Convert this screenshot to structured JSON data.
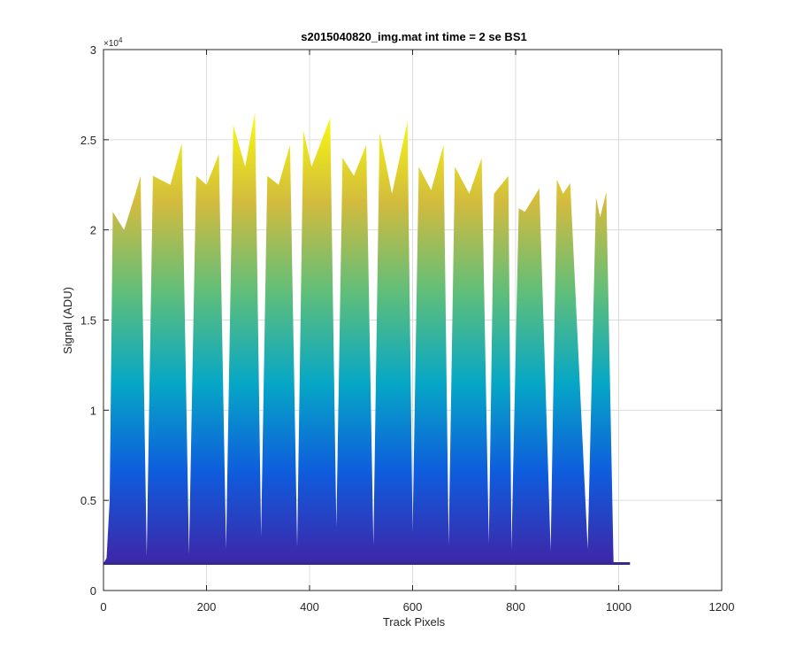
{
  "chart_data": {
    "type": "area",
    "title": "s2015040820_img.mat int time = 2 se   BS1",
    "xlabel": "Track Pixels",
    "ylabel": "Signal (ADU)",
    "xlim": [
      0,
      1200
    ],
    "ylim": [
      0,
      30000
    ],
    "xticks": [
      0,
      200,
      400,
      600,
      800,
      1000,
      1200
    ],
    "xtick_labels": [
      "0",
      "200",
      "400",
      "600",
      "800",
      "1000",
      "1200"
    ],
    "yticks": [
      0,
      5000,
      10000,
      15000,
      20000,
      25000,
      30000
    ],
    "ytick_labels": [
      "0",
      "0.5",
      "1",
      "1.5",
      "2",
      "2.5",
      "3"
    ],
    "y_exponent_base": "×10",
    "y_exponent_power": "4",
    "grid": true,
    "baseline": 1500,
    "colormap": [
      "#3e26a8",
      "#0f5cdd",
      "#06a7c6",
      "#5fbe7a",
      "#d2bb3e",
      "#f9fb0e"
    ],
    "x": [
      0,
      6,
      12,
      18,
      40,
      62,
      72,
      84,
      96,
      130,
      152,
      166,
      180,
      200,
      224,
      238,
      252,
      275,
      294,
      306,
      318,
      340,
      362,
      376,
      388,
      404,
      440,
      452,
      464,
      486,
      510,
      524,
      536,
      560,
      590,
      600,
      612,
      636,
      660,
      670,
      682,
      710,
      734,
      748,
      758,
      786,
      792,
      806,
      818,
      846,
      868,
      880,
      892,
      906,
      940,
      956,
      964,
      976,
      990,
      1010,
      1020,
      1022
    ],
    "y": [
      1500,
      1800,
      5000,
      21000,
      20000,
      22000,
      23000,
      1900,
      23000,
      22500,
      24800,
      2000,
      23000,
      22500,
      24200,
      2300,
      25800,
      23500,
      26500,
      3000,
      23000,
      22500,
      24700,
      2400,
      25500,
      23500,
      26200,
      3500,
      24000,
      23000,
      24700,
      2500,
      25400,
      22000,
      26000,
      3200,
      23500,
      22200,
      24700,
      2500,
      23500,
      22000,
      24000,
      2600,
      22000,
      23000,
      2300,
      21200,
      21000,
      22300,
      2200,
      22800,
      22000,
      22600,
      2300,
      21800,
      20700,
      22100,
      1500,
      1500,
      1500,
      1500
    ]
  }
}
